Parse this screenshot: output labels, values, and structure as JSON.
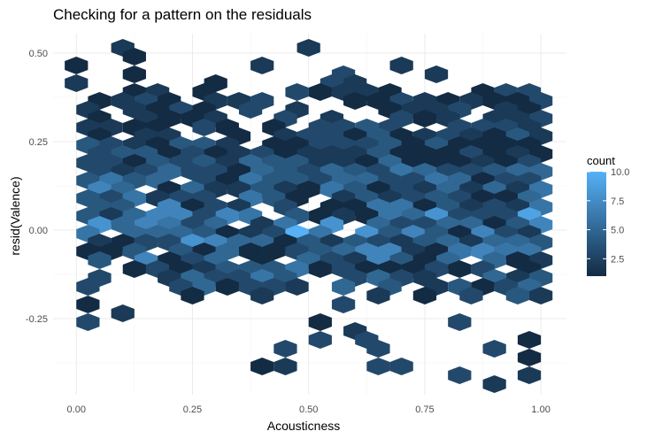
{
  "chart_data": {
    "type": "hexbin",
    "title": "Checking for a pattern on the residuals",
    "xlabel": "Acousticness",
    "ylabel": "resid(Valence)",
    "x_ticks": [
      0.0,
      0.25,
      0.5,
      0.75,
      1.0
    ],
    "x_tick_labels": [
      "0.00",
      "0.25",
      "0.50",
      "0.75",
      "1.00"
    ],
    "y_ticks": [
      -0.25,
      0.0,
      0.25,
      0.5
    ],
    "y_tick_labels": [
      "-0.25",
      "0.00",
      "0.25",
      "0.50"
    ],
    "xlim": [
      -0.05,
      1.055
    ],
    "ylim": [
      -0.465,
      0.555
    ],
    "grid": true,
    "legend": {
      "title": "count",
      "placement": "right",
      "breaks": [
        2.5,
        5.0,
        7.5,
        10.0
      ],
      "break_labels": [
        "2.5",
        "5.0",
        "7.5",
        "10.0"
      ],
      "range": [
        1,
        10
      ]
    },
    "colors": {
      "low": "#132B43",
      "high": "#56B1F7"
    },
    "hex_width_x": 0.05,
    "hex_rows_y": [
      -0.435,
      -0.41,
      -0.385,
      -0.36,
      -0.335,
      -0.31,
      -0.285,
      -0.26,
      -0.235,
      -0.21,
      -0.185,
      -0.16,
      -0.135,
      -0.11,
      -0.085,
      -0.06,
      -0.035,
      -0.01,
      0.015,
      0.04,
      0.065,
      0.09,
      0.115,
      0.14,
      0.165,
      0.19,
      0.215,
      0.24,
      0.265,
      0.29,
      0.315,
      0.34,
      0.365,
      0.39,
      0.415,
      0.44,
      0.465,
      0.49,
      0.515
    ],
    "hex_row_even_x0": 0.0,
    "hex_row_odd_x0": 0.025,
    "hex_rows": [
      "..x.......x.....................",
      "..x..............................",
      "x.......x.....x..................",
      "..x........x...x.................",
      "x.....x....xx....................",
      "..xx.x...xxxxx...xxxxx............",
      ".xxxx.xxx...xxxxxxxxx.xx..........",
      "x.xxxx.x.x...xxxx.xxxxx.xxx.......",
      ".x.xxxx..x.x..xxx.xxxxxxxxxx......",
      "xxxx.xx.x.xxxx..xxxxxxxxxxxx......",
      ".x.xx..x.xxxxxxxxxxxxxx.xxxx.x.x..",
      "xxxxxxx.xxxxxxxxxxxxxxxxxxxxxxxx..",
      ".xxxxxxxxxxxxxxxxxxxxxxxxxxxxxxx..",
      "xxxxxxxxxxxxxxxxxxxxxxxxxxxxxxxx..",
      ".xxxxxxxxxxxxxxxxxxxxxxxxxxxxxxx..",
      "xxxx.xxxxxxxxxxxxxxxxxxxxxxxxxxxx.",
      ".xx.xxxxxxxxxxxxxxxxxxxxxxxxxxxxx.",
      "xxxxxx.xxx.xxxxxxxxxxxxxxxxxxxxxx.",
      ".xx.xxxx.x.xxxxxxxxxxxxxxxxxxxxx..",
      "xxxxxxxx.xxxxxxxxxxxxxxxxxxx.xxx..",
      ".xxxxxx.xx.x.xxxxxxxxxxxxxxxxxx...",
      "x.xxxxxxxxx.xxxxxxxxxxxxxxxxxxxxx.",
      ".xxxxxxxxxxxxxxxxxxxxxxxxxxx.x.xx.",
      "xxx.xxxxxxxxxxxxxxxxxxxxxxxxxxxx..",
      ".x.xxxx.x.xxxxxxx.xxxxxxxxxxx.....",
      "..xxxxxxxxxxxxxxxx.xxxxxx.xx......",
      ".x..xxxxxx..xxxx..xxxxxxx.........",
      "x...xxxxxx.x.x.xxxxxxxx..xx.......",
      ".....x..x....x.x.x.xx.............",
      "x..........x........xx..x..........",
      "..x.............................x.",
      "x.........x.....x................",
      "............x....................",
      "..........x.x......x.............",
      ".........x...x....x..............",
      "...................x.............",
      "........xx...xx..................",
      "................x..x..............",
      "..................x..............."
    ],
    "hex_rows_note_values": "x = occupied bin; counts below in row-major order of occupied bins",
    "counts_seed": 7
  }
}
